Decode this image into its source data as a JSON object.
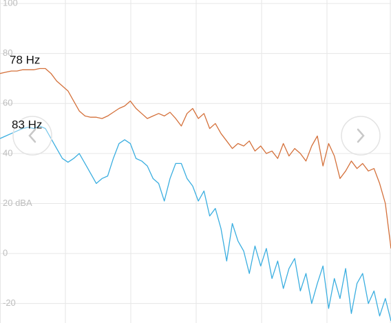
{
  "chart_data": {
    "type": "line",
    "ylim": [
      -27.8,
      101.4
    ],
    "yticks": [
      -20,
      0,
      {
        "value": 20,
        "label": "20 dBA"
      },
      40,
      60,
      80,
      100
    ],
    "grid": true,
    "series": [
      {
        "name": "78 Hz",
        "color": "#d4703a",
        "values": [
          72,
          72.5,
          73,
          73,
          73.5,
          73.5,
          73.5,
          74,
          74,
          72,
          69,
          67,
          65,
          61,
          57,
          55,
          54.5,
          54.5,
          54,
          55,
          56.5,
          58,
          59,
          61,
          58,
          56,
          54,
          55,
          56,
          55,
          56.5,
          54,
          51,
          56,
          58,
          54,
          56,
          50,
          52,
          48,
          45,
          42,
          44,
          43,
          45,
          41,
          43,
          40,
          41,
          38,
          44,
          39,
          42,
          40,
          37,
          43,
          47,
          35,
          44,
          39,
          30,
          33,
          37,
          34,
          36,
          33,
          34,
          28,
          20,
          2
        ]
      },
      {
        "name": "83 Hz",
        "color": "#3aaee0",
        "values": [
          46,
          47,
          48,
          49,
          50,
          50.5,
          50,
          51,
          50,
          46,
          42,
          38,
          36.5,
          38,
          40,
          36,
          32,
          28,
          30,
          31,
          38,
          44,
          45.5,
          44,
          38,
          37,
          35,
          30,
          28,
          21,
          30,
          36,
          36,
          30,
          27,
          21,
          25,
          15,
          18,
          10,
          -3,
          12,
          5,
          1,
          -8,
          3,
          -5,
          2,
          -10,
          -3,
          -14,
          -6,
          -2,
          -15,
          -8,
          -20,
          -12,
          -5,
          -22,
          -10,
          -18,
          -6,
          -24,
          -12,
          -8,
          -20,
          -15,
          -25,
          -18,
          -27
        ]
      }
    ]
  }
}
